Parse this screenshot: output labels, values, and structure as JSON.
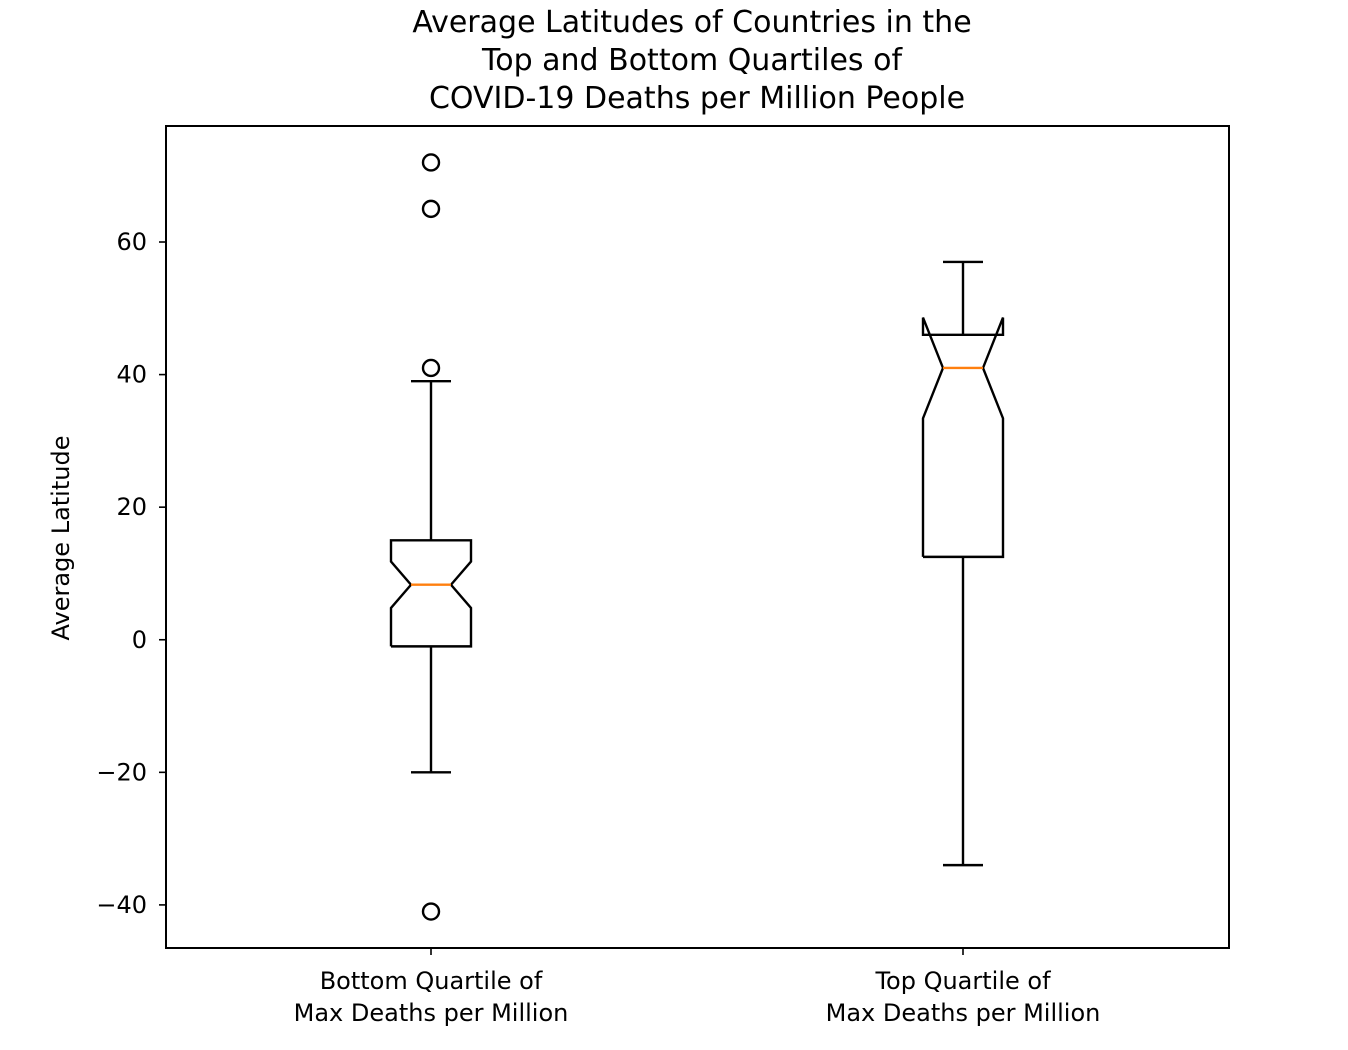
{
  "chart_data": {
    "type": "boxplot",
    "notched": true,
    "title": "Average Latitudes of Countries in the\nTop and Bottom Quartiles of\nCOVID-19 Deaths per Million People",
    "title_lines": [
      "Average Latitudes of Countries in the",
      "Top and Bottom Quartiles of",
      "COVID-19 Deaths per Million People"
    ],
    "xlabel": "",
    "ylabel": "Average Latitude",
    "ylim": [
      -46.5,
      77.5
    ],
    "yticks": [
      -40,
      -20,
      0,
      20,
      40,
      60
    ],
    "ytick_labels": [
      "−40",
      "−20",
      "0",
      "20",
      "40",
      "60"
    ],
    "grid": false,
    "colors": {
      "box": "#000000",
      "median": "#ff7f0e",
      "outlier": "#000000",
      "background": "#ffffff"
    },
    "boxes": [
      {
        "label": "Bottom Quartile of\nMax Deaths per Million",
        "label_lines": [
          "Bottom Quartile of",
          "Max Deaths per Million"
        ],
        "whisker_low": -20,
        "q1": -1,
        "notch_low": 4.8,
        "median": 8.3,
        "notch_high": 11.8,
        "q3": 15,
        "whisker_high": 39,
        "outliers": [
          72,
          65,
          41,
          -41
        ]
      },
      {
        "label": "Top Quartile of\nMax Deaths per Million",
        "label_lines": [
          "Top Quartile of",
          "Max Deaths per Million"
        ],
        "whisker_low": -34,
        "q1": 12.5,
        "notch_low": 33.4,
        "median": 41,
        "notch_high": 48.6,
        "q3": 46,
        "whisker_high": 57,
        "outliers": []
      }
    ]
  }
}
